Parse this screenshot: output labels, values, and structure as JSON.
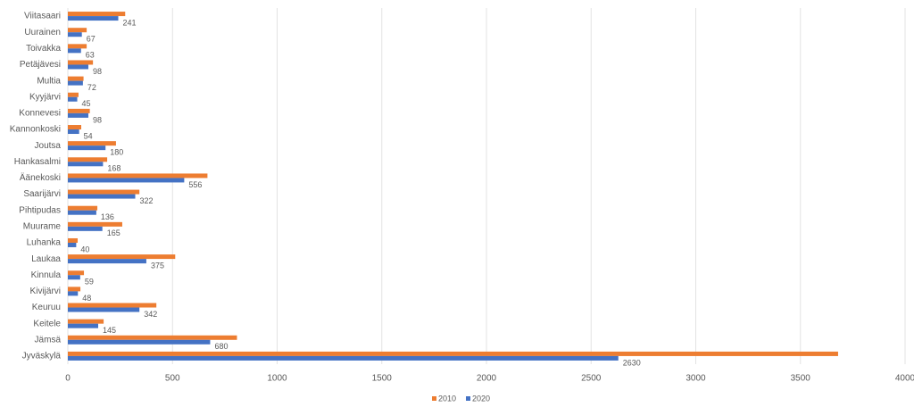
{
  "chart_data": {
    "type": "hbar",
    "categories": [
      "Viitasaari",
      "Uurainen",
      "Toivakka",
      "Petäjävesi",
      "Multia",
      "Kyyjärvi",
      "Konnevesi",
      "Kannonkoski",
      "Joutsa",
      "Hankasalmi",
      "Äänekoski",
      "Saarijärvi",
      "Pihtipudas",
      "Muurame",
      "Luhanka",
      "Laukaa",
      "Kinnula",
      "Kivijärvi",
      "Keuruu",
      "Keitele",
      "Jämsä",
      "Jyväskylä"
    ],
    "series": [
      {
        "name": "2010",
        "color": "#ed7d31",
        "values": [
          274,
          90,
          90,
          120,
          75,
          51,
          105,
          64,
          230,
          188,
          667,
          342,
          141,
          260,
          47,
          513,
          77,
          60,
          423,
          171,
          808,
          3680
        ]
      },
      {
        "name": "2020",
        "color": "#4472c4",
        "values": [
          241,
          67,
          63,
          98,
          72,
          45,
          98,
          54,
          180,
          168,
          556,
          322,
          136,
          165,
          40,
          375,
          59,
          48,
          342,
          145,
          680,
          2630
        ],
        "data_labels": true
      }
    ],
    "xlim": [
      0,
      4000
    ],
    "xticks": [
      0,
      500,
      1000,
      1500,
      2000,
      2500,
      3000,
      3500,
      4000
    ],
    "grid": true,
    "legend": "bottom"
  }
}
